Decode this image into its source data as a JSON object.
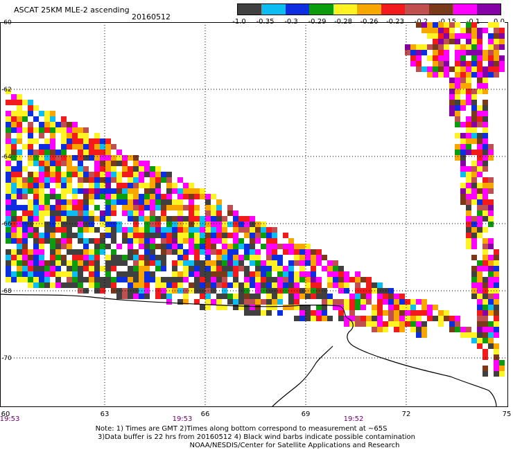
{
  "header": {
    "title": "ASCAT 25KM MLE-2 ascending",
    "date": "20160512"
  },
  "colorbar": {
    "colors": [
      "#404040",
      "#0bbdf0",
      "#0d2ee0",
      "#0b9c0b",
      "#fff222",
      "#f7a700",
      "#f21a1a",
      "#c05050",
      "#7a3a1a",
      "#ff00ff",
      "#8600a8"
    ],
    "labels": [
      "-1.0",
      "-0.35",
      "-0.3",
      "-0.29",
      "-0.28",
      "-0.26",
      "-0.23",
      "-0.2",
      "-0.15",
      "-0.1",
      "0.0"
    ]
  },
  "axes": {
    "lat_labels": [
      "-60",
      "-62",
      "-64",
      "-66",
      "-68",
      "-70"
    ],
    "lon_labels": [
      "60",
      "63",
      "66",
      "69",
      "72",
      "75"
    ],
    "time_labels": [
      "19:53",
      "19:53",
      "19:52"
    ]
  },
  "notes": [
    "Note: 1) Times are GMT 2)Times along bottom correspond to measurement at ~65S",
    "3)Data buffer is 22 hrs from 20160512 4) Black wind barbs indicate possible contamination",
    "NOAA/NESDIS/Center for Satellite Applications and Research"
  ]
}
